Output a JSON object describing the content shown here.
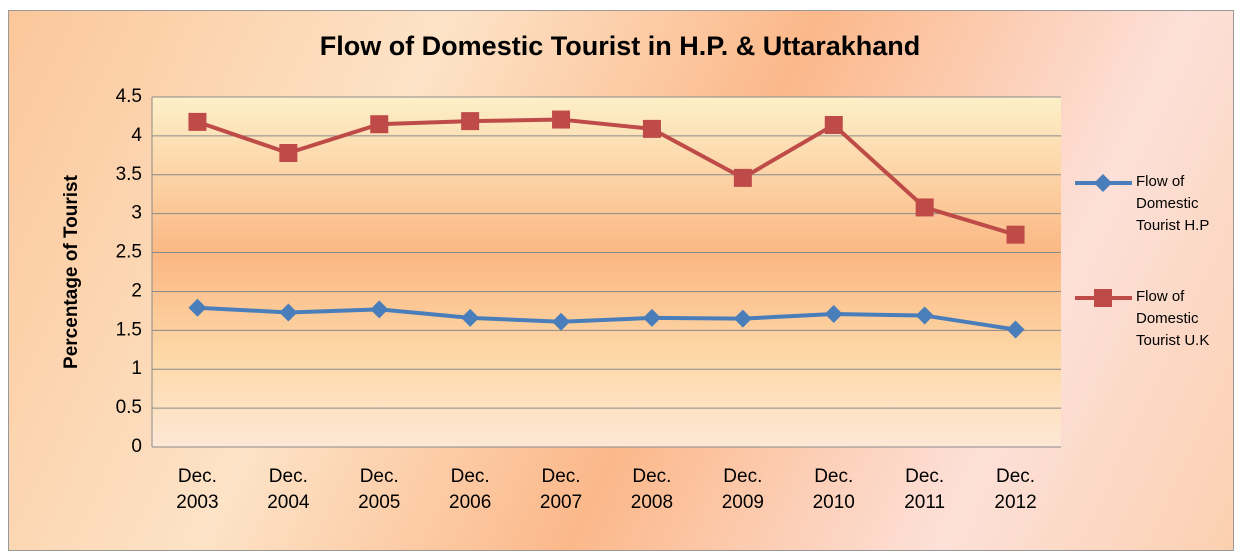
{
  "chart_data": {
    "type": "line",
    "title": "Flow of Domestic Tourist in H.P. & Uttarakhand",
    "y_label": "Percentage of Tourist",
    "categories": [
      "Dec. 2003",
      "Dec. 2004",
      "Dec. 2005",
      "Dec. 2006",
      "Dec. 2007",
      "Dec. 2008",
      "Dec. 2009",
      "Dec. 2010",
      "Dec. 2011",
      "Dec. 2012"
    ],
    "series": [
      {
        "name": "Flow of Domestic Tourist H.P",
        "color": "#4a7ebb",
        "marker": "diamond",
        "values": [
          1.79,
          1.73,
          1.77,
          1.66,
          1.61,
          1.66,
          1.65,
          1.71,
          1.69,
          1.51
        ]
      },
      {
        "name": "Flow of Domestic Tourist U.K",
        "color": "#be4b48",
        "marker": "square",
        "values": [
          4.18,
          3.78,
          4.15,
          4.19,
          4.21,
          4.09,
          3.46,
          4.14,
          3.08,
          2.73
        ]
      }
    ],
    "ylim": [
      0,
      4.5
    ],
    "yticks": [
      0,
      0.5,
      1,
      1.5,
      2,
      2.5,
      3,
      3.5,
      4,
      4.5
    ],
    "grid": true,
    "legend": "right"
  }
}
